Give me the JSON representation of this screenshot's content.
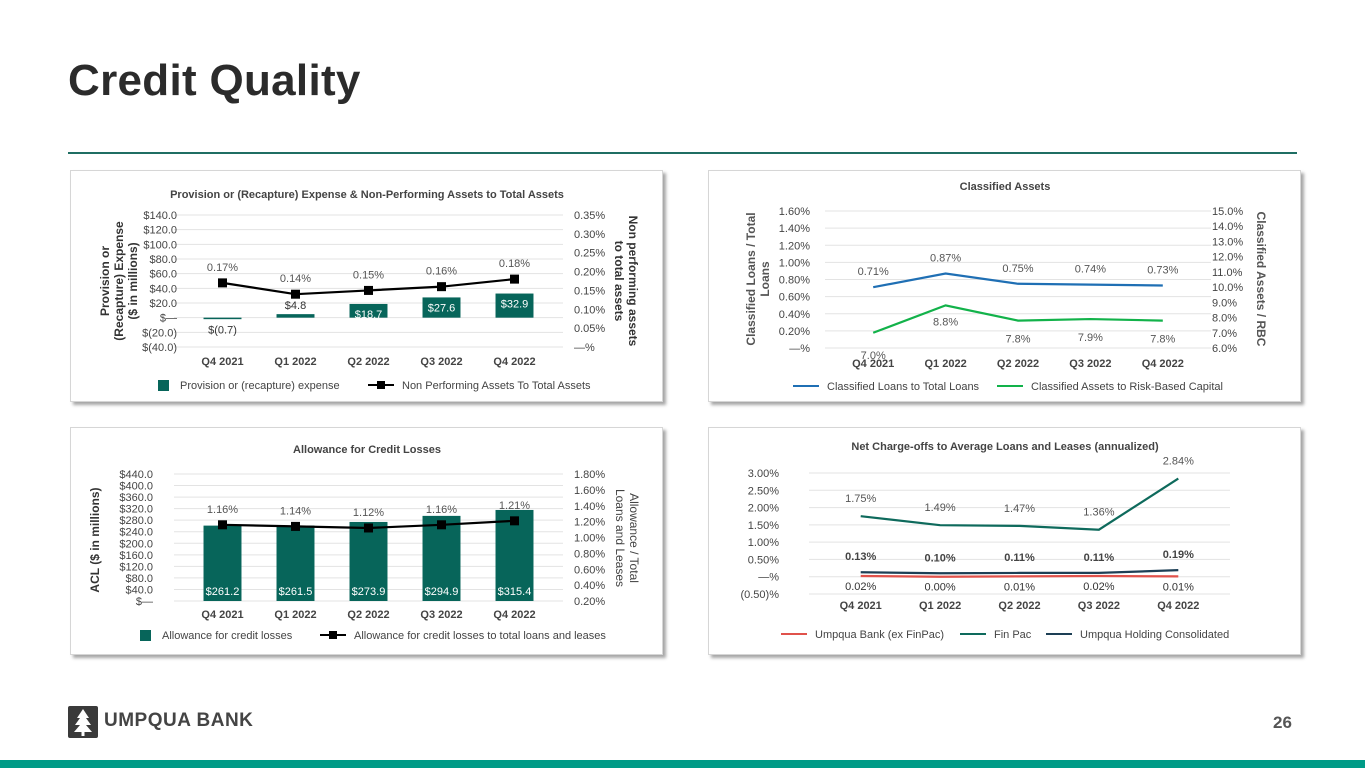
{
  "page": {
    "title": "Credit Quality",
    "page_number": "26",
    "logo_text": "UMPQUA BANK",
    "colors": {
      "brand": "#009b87",
      "dark_green": "#07655a",
      "rule": "#1f6e63"
    }
  },
  "chart_data": [
    {
      "id": "provision",
      "type": "bar",
      "title": "Provision or (Recapture) Expense & Non-Performing Assets to Total Assets",
      "ylabel": "Provision or (Recapture) Expense ($ in millions)",
      "y2label": "Non performing assets to total assets",
      "categories": [
        "Q4 2021",
        "Q1 2022",
        "Q2 2022",
        "Q3 2022",
        "Q4 2022"
      ],
      "ylim": [
        -40,
        140
      ],
      "y_ticks": [
        "$(40.0)",
        "$(20.0)",
        "$—",
        "$20.0",
        "$40.0",
        "$60.0",
        "$80.0",
        "$100.0",
        "$120.0",
        "$140.0"
      ],
      "y2lim": [
        0,
        0.35
      ],
      "y2_ticks": [
        "—%",
        "0.05%",
        "0.10%",
        "0.15%",
        "0.20%",
        "0.25%",
        "0.30%",
        "0.35%"
      ],
      "series": [
        {
          "name": "Provision or (recapture) expense",
          "kind": "bar",
          "axis": "left",
          "color": "#07655a",
          "values": [
            -0.7,
            4.8,
            18.7,
            27.6,
            32.9
          ],
          "labels": [
            "$(0.7)",
            "$4.8",
            "$18.7",
            "$27.6",
            "$32.9"
          ]
        },
        {
          "name": "Non Performing Assets To Total Assets",
          "kind": "line",
          "axis": "right",
          "color": "#000000",
          "values": [
            0.17,
            0.14,
            0.15,
            0.16,
            0.18
          ],
          "labels": [
            "0.17%",
            "0.14%",
            "0.15%",
            "0.16%",
            "0.18%"
          ]
        }
      ],
      "legend": "bottom"
    },
    {
      "id": "classified",
      "type": "line",
      "title": "Classified Assets",
      "ylabel": "Classified Loans / Total Loans",
      "y2label": "Classified Assets / RBC",
      "categories": [
        "Q4 2021",
        "Q1 2022",
        "Q2 2022",
        "Q3 2022",
        "Q4 2022"
      ],
      "ylim": [
        0,
        1.6
      ],
      "y_ticks": [
        "—%",
        "0.20%",
        "0.40%",
        "0.60%",
        "0.80%",
        "1.00%",
        "1.20%",
        "1.40%",
        "1.60%"
      ],
      "y2lim": [
        6,
        15
      ],
      "y2_ticks": [
        "6.0%",
        "7.0%",
        "8.0%",
        "9.0%",
        "10.0%",
        "11.0%",
        "12.0%",
        "13.0%",
        "14.0%",
        "15.0%"
      ],
      "series": [
        {
          "name": "Classified Loans to Total Loans",
          "axis": "left",
          "color": "#1f6fb4",
          "values": [
            0.71,
            0.87,
            0.75,
            0.74,
            0.73
          ],
          "labels": [
            "0.71%",
            "0.87%",
            "0.75%",
            "0.74%",
            "0.73%"
          ]
        },
        {
          "name": "Classified Assets to Risk-Based Capital",
          "axis": "right",
          "color": "#12b24a",
          "values": [
            7.0,
            8.8,
            7.8,
            7.9,
            7.8
          ],
          "labels": [
            "7.0%",
            "8.8%",
            "7.8%",
            "7.9%",
            "7.8%"
          ]
        }
      ],
      "legend": "bottom"
    },
    {
      "id": "allowance",
      "type": "bar",
      "title": "Allowance for Credit Losses",
      "ylabel": "ACL ($ in millions)",
      "y2label": "Allowance / Total Loans and Leases",
      "categories": [
        "Q4 2021",
        "Q1 2022",
        "Q2 2022",
        "Q3 2022",
        "Q4 2022"
      ],
      "ylim": [
        0,
        440
      ],
      "y_ticks": [
        "$—",
        "$40.0",
        "$80.0",
        "$120.0",
        "$160.0",
        "$200.0",
        "$240.0",
        "$280.0",
        "$320.0",
        "$360.0",
        "$400.0",
        "$440.0"
      ],
      "y2lim": [
        0.2,
        1.8
      ],
      "y2_ticks": [
        "0.20%",
        "0.40%",
        "0.60%",
        "0.80%",
        "1.00%",
        "1.20%",
        "1.40%",
        "1.60%",
        "1.80%"
      ],
      "series": [
        {
          "name": "Allowance for credit losses",
          "kind": "bar",
          "axis": "left",
          "color": "#07655a",
          "values": [
            261.2,
            261.5,
            273.9,
            294.9,
            315.4
          ],
          "labels": [
            "$261.2",
            "$261.5",
            "$273.9",
            "$294.9",
            "$315.4"
          ]
        },
        {
          "name": "Allowance for credit losses to total loans and leases",
          "kind": "line",
          "axis": "right",
          "color": "#000000",
          "values": [
            1.16,
            1.14,
            1.12,
            1.16,
            1.21
          ],
          "labels": [
            "1.16%",
            "1.14%",
            "1.12%",
            "1.16%",
            "1.21%"
          ]
        }
      ],
      "legend": "bottom"
    },
    {
      "id": "chargeoffs",
      "type": "line",
      "title": "Net Charge-offs to Average Loans and Leases (annualized)",
      "categories": [
        "Q4 2021",
        "Q1 2022",
        "Q2 2022",
        "Q3 2022",
        "Q4 2022"
      ],
      "ylim": [
        -0.5,
        3.0
      ],
      "y_ticks": [
        "(0.50)%",
        "—%",
        "0.50%",
        "1.00%",
        "1.50%",
        "2.00%",
        "2.50%",
        "3.00%"
      ],
      "series": [
        {
          "name": "Umpqua Bank (ex FinPac)",
          "color": "#e0524b",
          "values": [
            0.02,
            0.0,
            0.01,
            0.02,
            0.01
          ],
          "labels": [
            "0.02%",
            "0.00%",
            "0.01%",
            "0.02%",
            "0.01%"
          ]
        },
        {
          "name": "Fin Pac",
          "color": "#0e6a5c",
          "values": [
            1.75,
            1.49,
            1.47,
            1.36,
            2.84
          ],
          "labels": [
            "1.75%",
            "1.49%",
            "1.47%",
            "1.36%",
            "2.84%"
          ]
        },
        {
          "name": "Umpqua Holding Consolidated",
          "color": "#1d3f55",
          "values": [
            0.13,
            0.1,
            0.11,
            0.11,
            0.19
          ],
          "labels": [
            "0.13%",
            "0.10%",
            "0.11%",
            "0.11%",
            "0.19%"
          ]
        }
      ],
      "legend": "bottom"
    }
  ]
}
